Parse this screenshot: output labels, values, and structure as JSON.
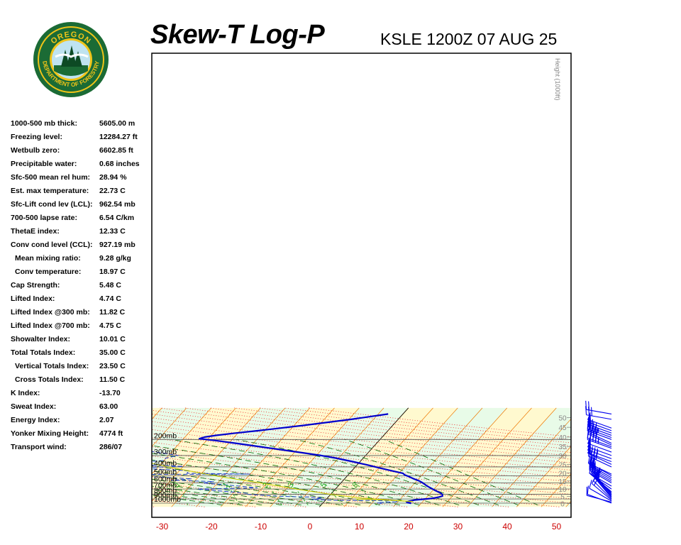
{
  "header": {
    "title": "Skew-T Log-P",
    "station": "KSLE 1200Z 07 AUG 25"
  },
  "logo": {
    "top_text": "OREGON",
    "bottom_text": "DEPARTMENT OF FORESTRY"
  },
  "indices": [
    {
      "label": "1000-500 mb thick:",
      "value": "5605.00 m",
      "indent": false
    },
    {
      "label": "Freezing level:",
      "value": "12284.27 ft",
      "indent": false
    },
    {
      "label": "Wetbulb zero:",
      "value": "6602.85 ft",
      "indent": false
    },
    {
      "label": "Precipitable water:",
      "value": "0.68 inches",
      "indent": false
    },
    {
      "label": "Sfc-500 mean rel hum:",
      "value": "28.94 %",
      "indent": false
    },
    {
      "label": "Est. max temperature:",
      "value": "22.73 C",
      "indent": false
    },
    {
      "label": "Sfc-Lift cond lev (LCL):",
      "value": "962.54 mb",
      "indent": false
    },
    {
      "label": "700-500 lapse rate:",
      "value": "6.54 C/km",
      "indent": false
    },
    {
      "label": "ThetaE index:",
      "value": "12.33 C",
      "indent": false
    },
    {
      "label": "Conv cond level (CCL):",
      "value": "927.19 mb",
      "indent": false
    },
    {
      "label": "Mean mixing ratio:",
      "value": "9.28 g/kg",
      "indent": true
    },
    {
      "label": "Conv temperature:",
      "value": "18.97 C",
      "indent": true
    },
    {
      "label": "Cap Strength:",
      "value": "5.48 C",
      "indent": false
    },
    {
      "label": "Lifted Index:",
      "value": "4.74 C",
      "indent": false
    },
    {
      "label": "Lifted Index @300 mb:",
      "value": "11.82 C",
      "indent": false
    },
    {
      "label": "Lifted Index @700 mb:",
      "value": "4.75 C",
      "indent": false
    },
    {
      "label": "Showalter Index:",
      "value": "10.01 C",
      "indent": false
    },
    {
      "label": "Total Totals Index:",
      "value": "35.00 C",
      "indent": false
    },
    {
      "label": "Vertical Totals Index:",
      "value": "23.50 C",
      "indent": true
    },
    {
      "label": "Cross Totals Index:",
      "value": "11.50 C",
      "indent": true
    },
    {
      "label": "K Index:",
      "value": "-13.70",
      "indent": false
    },
    {
      "label": "Sweat Index:",
      "value": "63.00",
      "indent": false
    },
    {
      "label": "Energy Index:",
      "value": "2.07",
      "indent": false
    },
    {
      "label": "Yonker Mixing Height:",
      "value": "4774 ft",
      "indent": false
    },
    {
      "label": "Transport wind:",
      "value": "286/07",
      "indent": false
    }
  ],
  "chart_data": {
    "type": "line",
    "xlabel": "",
    "ylabel": "",
    "temperature_ticks": [
      "-30",
      "-20",
      "-10",
      "0",
      "10",
      "20",
      "30",
      "40",
      "50"
    ],
    "pressure_levels": [
      {
        "p": 200,
        "label": "200mb"
      },
      {
        "p": 300,
        "label": "300mb"
      },
      {
        "p": 400,
        "label": "400mb"
      },
      {
        "p": 500,
        "label": "500mb"
      },
      {
        "p": 600,
        "label": "600mb"
      },
      {
        "p": 700,
        "label": "700mb"
      },
      {
        "p": 800,
        "label": "800mb"
      },
      {
        "p": 900,
        "label": "900mb"
      },
      {
        "p": 1000,
        "label": "1000mb"
      }
    ],
    "height_axis_label": "Height (1000ft)",
    "height_ticks": [
      {
        "p": 1010,
        "label": "0"
      },
      {
        "p": 845,
        "label": "5"
      },
      {
        "p": 700,
        "label": "10"
      },
      {
        "p": 571,
        "label": "15"
      },
      {
        "p": 465,
        "label": "20"
      },
      {
        "p": 376,
        "label": "25"
      },
      {
        "p": 301,
        "label": "30"
      },
      {
        "p": 239,
        "label": "35"
      },
      {
        "p": 188,
        "label": "40"
      },
      {
        "p": 147,
        "label": "45"
      },
      {
        "p": 115,
        "label": "50"
      }
    ],
    "mixing_ratio_labels": [
      "0",
      "1",
      "2",
      "3",
      "5",
      "8"
    ],
    "colors": {
      "temperature": "#0000cc",
      "dewpoint": "#2244cc",
      "parcel": "#cccc00",
      "isotherm": "#ee7700",
      "dry_adiabat": "#ee2222",
      "moist_adiabat": "#006600",
      "mixing_ratio": "#22aa22",
      "wind_barbs": "#0000ee",
      "band_light": "#e8fbe8",
      "band_dark": "#fff9cf"
    },
    "series": [
      {
        "name": "",
        "kind": "temperature",
        "points": [
          [
            1010,
            18
          ],
          [
            1000,
            17.8
          ],
          [
            990,
            17.2
          ],
          [
            980,
            16.9
          ],
          [
            965,
            16.8
          ],
          [
            950,
            17.2
          ],
          [
            940,
            17.6
          ],
          [
            925,
            18.0
          ],
          [
            915,
            18.7
          ],
          [
            900,
            20.2
          ],
          [
            890,
            21.0
          ],
          [
            875,
            21.8
          ],
          [
            855,
            22.5
          ],
          [
            835,
            23.0
          ],
          [
            815,
            22.8
          ],
          [
            800,
            22.6
          ],
          [
            780,
            22.2
          ],
          [
            750,
            21.3
          ],
          [
            720,
            20.3
          ],
          [
            690,
            19.4
          ],
          [
            660,
            18.4
          ],
          [
            630,
            17.5
          ],
          [
            600,
            16.6
          ],
          [
            570,
            15.5
          ],
          [
            540,
            14.0
          ],
          [
            510,
            12.6
          ],
          [
            490,
            11.5
          ],
          [
            470,
            10.8
          ],
          [
            440,
            8.0
          ],
          [
            410,
            5.0
          ],
          [
            380,
            2.0
          ],
          [
            350,
            -1.5
          ],
          [
            320,
            -5.6
          ],
          [
            300,
            -9.0
          ],
          [
            280,
            -13.2
          ],
          [
            260,
            -18.0
          ],
          [
            240,
            -23.0
          ],
          [
            220,
            -28.6
          ],
          [
            205,
            -33.3
          ],
          [
            196,
            -36.8
          ],
          [
            188,
            -36.0
          ],
          [
            180,
            -34.0
          ],
          [
            170,
            -30.5
          ],
          [
            160,
            -26.3
          ],
          [
            140,
            -18.0
          ],
          [
            120,
            -9.5
          ],
          [
            105,
            -3.0
          ]
        ]
      },
      {
        "name": "",
        "kind": "dewpoint",
        "points": [
          [
            1010,
            12
          ],
          [
            990,
            11
          ],
          [
            965,
            15
          ],
          [
            950,
            14.5
          ],
          [
            940,
            15.5
          ],
          [
            935,
            10
          ],
          [
            933,
            2
          ],
          [
            910,
            -3
          ],
          [
            880,
            -1
          ],
          [
            860,
            -3
          ],
          [
            840,
            -10
          ],
          [
            800,
            -17
          ],
          [
            780,
            -17
          ],
          [
            750,
            -21
          ],
          [
            700,
            -28
          ],
          [
            680,
            -16
          ],
          [
            650,
            -20
          ],
          [
            600,
            -28
          ],
          [
            580,
            -26
          ],
          [
            560,
            -35
          ],
          [
            540,
            -31
          ],
          [
            520,
            -37
          ],
          [
            500,
            -44
          ],
          [
            485,
            -49
          ],
          [
            480,
            -20
          ],
          [
            470,
            -33
          ],
          [
            440,
            -33
          ],
          [
            410,
            -45
          ],
          [
            395,
            -35
          ],
          [
            380,
            -43
          ],
          [
            360,
            -46
          ],
          [
            340,
            -40
          ],
          [
            320,
            -40
          ],
          [
            300,
            -38
          ],
          [
            280,
            -42
          ],
          [
            260,
            -47
          ],
          [
            245,
            -48
          ],
          [
            230,
            -48
          ],
          [
            220,
            -48
          ],
          [
            205,
            -54
          ],
          [
            195,
            -56
          ],
          [
            185,
            -58
          ],
          [
            170,
            -60
          ],
          [
            155,
            -62
          ],
          [
            140,
            -58
          ],
          [
            125,
            -60
          ],
          [
            115,
            -56
          ],
          [
            105,
            -58
          ]
        ]
      },
      {
        "name": "",
        "kind": "parcel",
        "points": [
          [
            962,
            18
          ],
          [
            880,
            7
          ],
          [
            800,
            0
          ],
          [
            700,
            -8
          ],
          [
            600,
            -16.5
          ],
          [
            500,
            -27
          ],
          [
            400,
            -38
          ],
          [
            300,
            -51
          ],
          [
            250,
            -55
          ]
        ]
      }
    ],
    "lcl_segment": [
      [
        962,
        18
      ],
      [
        930,
        13
      ],
      [
        900,
        6
      ]
    ],
    "wind_barbs": [
      {
        "p": 1000,
        "dir": 290,
        "spd": 10
      },
      {
        "p": 975,
        "dir": 285,
        "spd": 10
      },
      {
        "p": 950,
        "dir": 300,
        "spd": 10
      },
      {
        "p": 925,
        "dir": 310,
        "spd": 15
      },
      {
        "p": 900,
        "dir": 315,
        "spd": 15
      },
      {
        "p": 875,
        "dir": 320,
        "spd": 15
      },
      {
        "p": 850,
        "dir": 320,
        "spd": 15
      },
      {
        "p": 825,
        "dir": 320,
        "spd": 15
      },
      {
        "p": 800,
        "dir": 320,
        "spd": 20
      },
      {
        "p": 775,
        "dir": 315,
        "spd": 20
      },
      {
        "p": 750,
        "dir": 310,
        "spd": 20
      },
      {
        "p": 700,
        "dir": 305,
        "spd": 25
      },
      {
        "p": 650,
        "dir": 300,
        "spd": 25
      },
      {
        "p": 600,
        "dir": 300,
        "spd": 25
      },
      {
        "p": 575,
        "dir": 300,
        "spd": 25
      },
      {
        "p": 550,
        "dir": 300,
        "spd": 25
      },
      {
        "p": 525,
        "dir": 300,
        "spd": 25
      },
      {
        "p": 500,
        "dir": 300,
        "spd": 25
      },
      {
        "p": 480,
        "dir": 295,
        "spd": 30
      },
      {
        "p": 400,
        "dir": 295,
        "spd": 40
      },
      {
        "p": 375,
        "dir": 295,
        "spd": 40
      },
      {
        "p": 350,
        "dir": 290,
        "spd": 50
      },
      {
        "p": 325,
        "dir": 290,
        "spd": 50
      },
      {
        "p": 300,
        "dir": 290,
        "spd": 50
      },
      {
        "p": 275,
        "dir": 290,
        "spd": 50
      },
      {
        "p": 250,
        "dir": 290,
        "spd": 45
      },
      {
        "p": 240,
        "dir": 290,
        "spd": 45
      },
      {
        "p": 230,
        "dir": 295,
        "spd": 40
      },
      {
        "p": 220,
        "dir": 295,
        "spd": 40
      },
      {
        "p": 200,
        "dir": 290,
        "spd": 40
      },
      {
        "p": 190,
        "dir": 290,
        "spd": 45
      },
      {
        "p": 180,
        "dir": 290,
        "spd": 50
      },
      {
        "p": 170,
        "dir": 290,
        "spd": 55
      },
      {
        "p": 160,
        "dir": 290,
        "spd": 55
      },
      {
        "p": 150,
        "dir": 290,
        "spd": 50
      },
      {
        "p": 120,
        "dir": 280,
        "spd": 30
      },
      {
        "p": 105,
        "dir": 280,
        "spd": 20
      }
    ]
  }
}
